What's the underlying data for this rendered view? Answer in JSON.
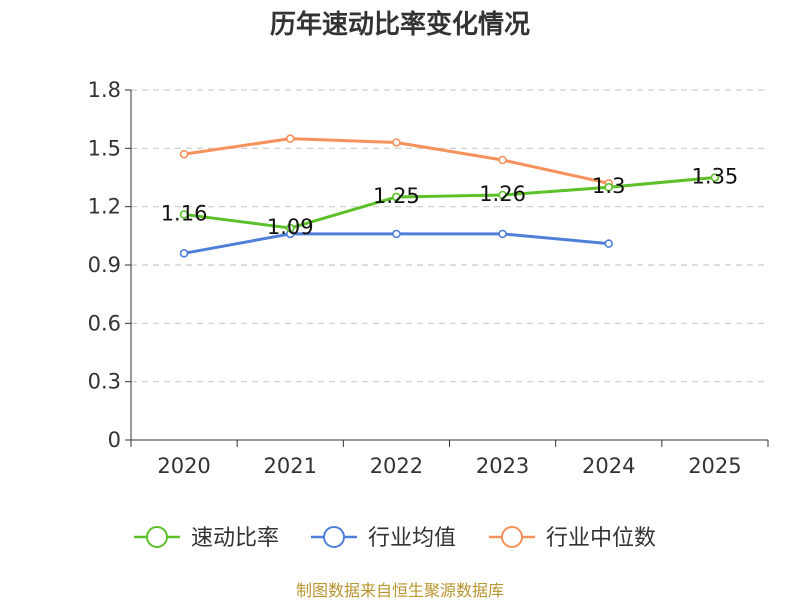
{
  "chart_data": {
    "type": "line",
    "title": "历年速动比率变化情况",
    "categories": [
      "2020",
      "2021",
      "2022",
      "2023",
      "2024",
      "2025"
    ],
    "ylim": [
      0,
      1.8
    ],
    "yticks": [
      "0",
      "0.3",
      "0.6",
      "0.9",
      "1.2",
      "1.5",
      "1.8"
    ],
    "grid": true,
    "legend_position": "bottom",
    "series": [
      {
        "name": "速动比率",
        "color": "#5cc128",
        "values": [
          1.16,
          1.09,
          1.25,
          1.26,
          1.3,
          1.35
        ],
        "labels": [
          "1.16",
          "1.09",
          "1.25",
          "1.26",
          "1.3",
          "1.35"
        ]
      },
      {
        "name": "行业均值",
        "color": "#4f7fd9",
        "values": [
          0.96,
          1.06,
          1.06,
          1.06,
          1.01,
          null
        ]
      },
      {
        "name": "行业中位数",
        "color": "#f7915c",
        "values": [
          1.47,
          1.55,
          1.53,
          1.44,
          1.32,
          null
        ]
      }
    ],
    "source": "制图数据来自恒生聚源数据库"
  }
}
